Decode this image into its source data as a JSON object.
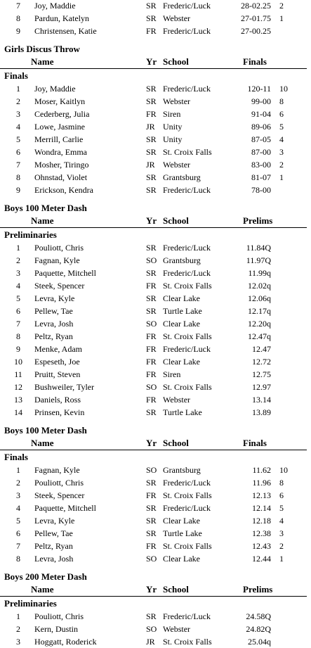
{
  "columns": {
    "name": "Name",
    "yr": "Yr",
    "school": "School"
  },
  "sections": [
    {
      "title": "",
      "mark_header": "",
      "round": "",
      "rows": [
        {
          "place": "7",
          "name": "Joy, Maddie",
          "yr": "SR",
          "school": "Frederic/Luck",
          "mark": "28-02.25",
          "pts": "2"
        },
        {
          "place": "8",
          "name": "Pardun, Katelyn",
          "yr": "SR",
          "school": "Webster",
          "mark": "27-01.75",
          "pts": "1"
        },
        {
          "place": "9",
          "name": "Christensen, Katie",
          "yr": "FR",
          "school": "Frederic/Luck",
          "mark": "27-00.25",
          "pts": ""
        }
      ]
    },
    {
      "title": "Girls Discus Throw",
      "mark_header": "Finals",
      "round": "Finals",
      "rows": [
        {
          "place": "1",
          "name": "Joy, Maddie",
          "yr": "SR",
          "school": "Frederic/Luck",
          "mark": "120-11",
          "pts": "10"
        },
        {
          "place": "2",
          "name": "Moser, Kaitlyn",
          "yr": "SR",
          "school": "Webster",
          "mark": "99-00",
          "pts": "8"
        },
        {
          "place": "3",
          "name": "Cederberg, Julia",
          "yr": "FR",
          "school": "Siren",
          "mark": "91-04",
          "pts": "6"
        },
        {
          "place": "4",
          "name": "Lowe, Jasmine",
          "yr": "JR",
          "school": "Unity",
          "mark": "89-06",
          "pts": "5"
        },
        {
          "place": "5",
          "name": "Merrill, Carlie",
          "yr": "SR",
          "school": "Unity",
          "mark": "87-05",
          "pts": "4"
        },
        {
          "place": "6",
          "name": "Wondra, Emma",
          "yr": "SR",
          "school": "St. Croix Falls",
          "mark": "87-00",
          "pts": "3"
        },
        {
          "place": "7",
          "name": "Mosher, Tiringo",
          "yr": "JR",
          "school": "Webster",
          "mark": "83-00",
          "pts": "2"
        },
        {
          "place": "8",
          "name": "Ohnstad, Violet",
          "yr": "SR",
          "school": "Grantsburg",
          "mark": "81-07",
          "pts": "1"
        },
        {
          "place": "9",
          "name": "Erickson, Kendra",
          "yr": "SR",
          "school": "Frederic/Luck",
          "mark": "78-00",
          "pts": ""
        }
      ]
    },
    {
      "title": "Boys 100 Meter Dash",
      "mark_header": "Prelims",
      "round": "Preliminaries",
      "rows": [
        {
          "place": "1",
          "name": "Pouliott, Chris",
          "yr": "SR",
          "school": "Frederic/Luck",
          "mark": "11.84Q",
          "pts": ""
        },
        {
          "place": "2",
          "name": "Fagnan, Kyle",
          "yr": "SO",
          "school": "Grantsburg",
          "mark": "11.97Q",
          "pts": ""
        },
        {
          "place": "3",
          "name": "Paquette, Mitchell",
          "yr": "SR",
          "school": "Frederic/Luck",
          "mark": "11.99q",
          "pts": ""
        },
        {
          "place": "4",
          "name": "Steek, Spencer",
          "yr": "FR",
          "school": "St. Croix Falls",
          "mark": "12.02q",
          "pts": ""
        },
        {
          "place": "5",
          "name": "Levra, Kyle",
          "yr": "SR",
          "school": "Clear Lake",
          "mark": "12.06q",
          "pts": ""
        },
        {
          "place": "6",
          "name": "Pellew, Tae",
          "yr": "SR",
          "school": "Turtle Lake",
          "mark": "12.17q",
          "pts": ""
        },
        {
          "place": "7",
          "name": "Levra, Josh",
          "yr": "SO",
          "school": "Clear Lake",
          "mark": "12.20q",
          "pts": ""
        },
        {
          "place": "8",
          "name": "Peltz, Ryan",
          "yr": "FR",
          "school": "St. Croix Falls",
          "mark": "12.47q",
          "pts": ""
        },
        {
          "place": "9",
          "name": "Menke, Adam",
          "yr": "FR",
          "school": "Frederic/Luck",
          "mark": "12.47",
          "pts": ""
        },
        {
          "place": "10",
          "name": "Espeseth, Joe",
          "yr": "FR",
          "school": "Clear Lake",
          "mark": "12.72",
          "pts": ""
        },
        {
          "place": "11",
          "name": "Pruitt, Steven",
          "yr": "FR",
          "school": "Siren",
          "mark": "12.75",
          "pts": ""
        },
        {
          "place": "12",
          "name": "Bushweiler, Tyler",
          "yr": "SO",
          "school": "St. Croix Falls",
          "mark": "12.97",
          "pts": ""
        },
        {
          "place": "13",
          "name": "Daniels, Ross",
          "yr": "FR",
          "school": "Webster",
          "mark": "13.14",
          "pts": ""
        },
        {
          "place": "14",
          "name": "Prinsen, Kevin",
          "yr": "SR",
          "school": "Turtle Lake",
          "mark": "13.89",
          "pts": ""
        }
      ]
    },
    {
      "title": "Boys 100 Meter Dash",
      "mark_header": "Finals",
      "round": "Finals",
      "rows": [
        {
          "place": "1",
          "name": "Fagnan, Kyle",
          "yr": "SO",
          "school": "Grantsburg",
          "mark": "11.62",
          "pts": "10"
        },
        {
          "place": "2",
          "name": "Pouliott, Chris",
          "yr": "SR",
          "school": "Frederic/Luck",
          "mark": "11.96",
          "pts": "8"
        },
        {
          "place": "3",
          "name": "Steek, Spencer",
          "yr": "FR",
          "school": "St. Croix Falls",
          "mark": "12.13",
          "pts": "6"
        },
        {
          "place": "4",
          "name": "Paquette, Mitchell",
          "yr": "SR",
          "school": "Frederic/Luck",
          "mark": "12.14",
          "pts": "5"
        },
        {
          "place": "5",
          "name": "Levra, Kyle",
          "yr": "SR",
          "school": "Clear Lake",
          "mark": "12.18",
          "pts": "4"
        },
        {
          "place": "6",
          "name": "Pellew, Tae",
          "yr": "SR",
          "school": "Turtle Lake",
          "mark": "12.38",
          "pts": "3"
        },
        {
          "place": "7",
          "name": "Peltz, Ryan",
          "yr": "FR",
          "school": "St. Croix Falls",
          "mark": "12.43",
          "pts": "2"
        },
        {
          "place": "8",
          "name": "Levra, Josh",
          "yr": "SO",
          "school": "Clear Lake",
          "mark": "12.44",
          "pts": "1"
        }
      ]
    },
    {
      "title": "Boys 200 Meter Dash",
      "mark_header": "Prelims",
      "round": "Preliminaries",
      "rows": [
        {
          "place": "1",
          "name": "Pouliott, Chris",
          "yr": "SR",
          "school": "Frederic/Luck",
          "mark": "24.58Q",
          "pts": ""
        },
        {
          "place": "2",
          "name": "Kern, Dustin",
          "yr": "SO",
          "school": "Webster",
          "mark": "24.82Q",
          "pts": ""
        },
        {
          "place": "3",
          "name": "Hoggatt, Roderick",
          "yr": "JR",
          "school": "St. Croix Falls",
          "mark": "25.04q",
          "pts": ""
        }
      ]
    }
  ]
}
